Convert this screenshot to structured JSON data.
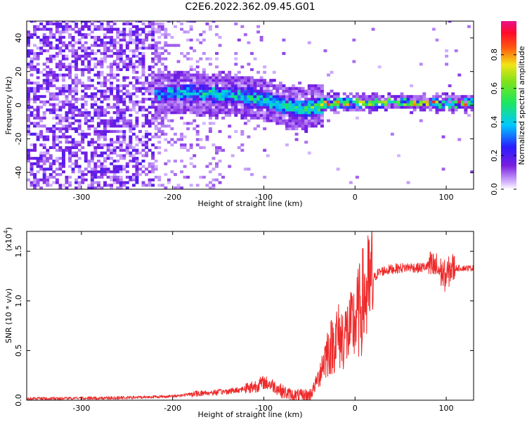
{
  "title": "C2E6.2022.362.09.45.G01",
  "colors": {
    "snr_line": "#ee2a2a",
    "axis": "#000000"
  },
  "chart_data": [
    {
      "type": "heatmap",
      "xlabel": "Height of straight line (km)",
      "ylabel": "Frequency (Hz)",
      "xlim": [
        -360,
        130
      ],
      "ylim": [
        -50,
        50
      ],
      "xticks": [
        -300,
        -200,
        -100,
        0,
        100
      ],
      "yticks": [
        -40,
        -20,
        0,
        20,
        40
      ],
      "colorbar": {
        "label": "Normalized spectral amplitude",
        "range": [
          0.0,
          1.0
        ],
        "ticks": [
          0.0,
          0.2,
          0.4,
          0.6,
          0.8
        ],
        "ticklabels": [
          "0.0",
          "0.2",
          "0.4",
          "0.6",
          "0.8"
        ],
        "colormap": "rainbow (white → violet → blue → cyan → green → yellow → red → magenta)"
      },
      "ridge": {
        "description": "narrowband signal near 0 Hz emerging from broadband noise",
        "points": [
          {
            "x": -215,
            "y": 6,
            "amp": 0.35
          },
          {
            "x": -190,
            "y": 7,
            "amp": 0.4
          },
          {
            "x": -160,
            "y": 6,
            "amp": 0.5
          },
          {
            "x": -130,
            "y": 5,
            "amp": 0.5
          },
          {
            "x": -100,
            "y": 2,
            "amp": 0.55
          },
          {
            "x": -75,
            "y": -2,
            "amp": 0.55
          },
          {
            "x": -55,
            "y": -3,
            "amp": 0.6
          },
          {
            "x": -35,
            "y": 0,
            "amp": 0.75
          },
          {
            "x": 0,
            "y": 1,
            "amp": 0.85
          },
          {
            "x": 50,
            "y": 1,
            "amp": 0.85
          },
          {
            "x": 100,
            "y": 0,
            "amp": 0.9
          },
          {
            "x": 130,
            "y": 0,
            "amp": 0.9
          }
        ]
      }
    },
    {
      "type": "line",
      "xlabel": "Height of straight line (km)",
      "ylabel": "SNR (10 * v/v)",
      "yexponent_label": "(x10",
      "yexponent_power": "4",
      "yexponent_close": ")",
      "xlim": [
        -360,
        130
      ],
      "ylim": [
        0,
        17000
      ],
      "xticks": [
        -300,
        -200,
        -100,
        0,
        100
      ],
      "yticks": [
        0,
        5000,
        10000,
        15000
      ],
      "yticklabels": [
        "0.0",
        "0.5",
        "1.0",
        "1.5"
      ],
      "series": [
        {
          "x": [
            -360,
            -300,
            -250,
            -200,
            -170,
            -150,
            -130,
            -110,
            -100,
            -90,
            -80,
            -70,
            -60,
            -50,
            -45,
            -40,
            -35,
            -30,
            -25,
            -20,
            -15,
            -10,
            -5,
            0,
            5,
            10,
            15,
            20,
            25,
            30,
            40,
            50,
            60,
            70,
            80,
            90,
            95,
            100,
            105,
            110,
            120,
            130
          ],
          "values": [
            150,
            200,
            250,
            400,
            700,
            800,
            1000,
            1400,
            1800,
            1500,
            900,
            500,
            400,
            500,
            1200,
            2500,
            3800,
            5000,
            5500,
            6500,
            6300,
            6700,
            7000,
            8000,
            9000,
            10500,
            11000,
            12200,
            12800,
            13000,
            13200,
            13300,
            13400,
            13300,
            13500,
            13300,
            12800,
            12400,
            13300,
            13300,
            13300,
            13300
          ]
        }
      ]
    }
  ]
}
